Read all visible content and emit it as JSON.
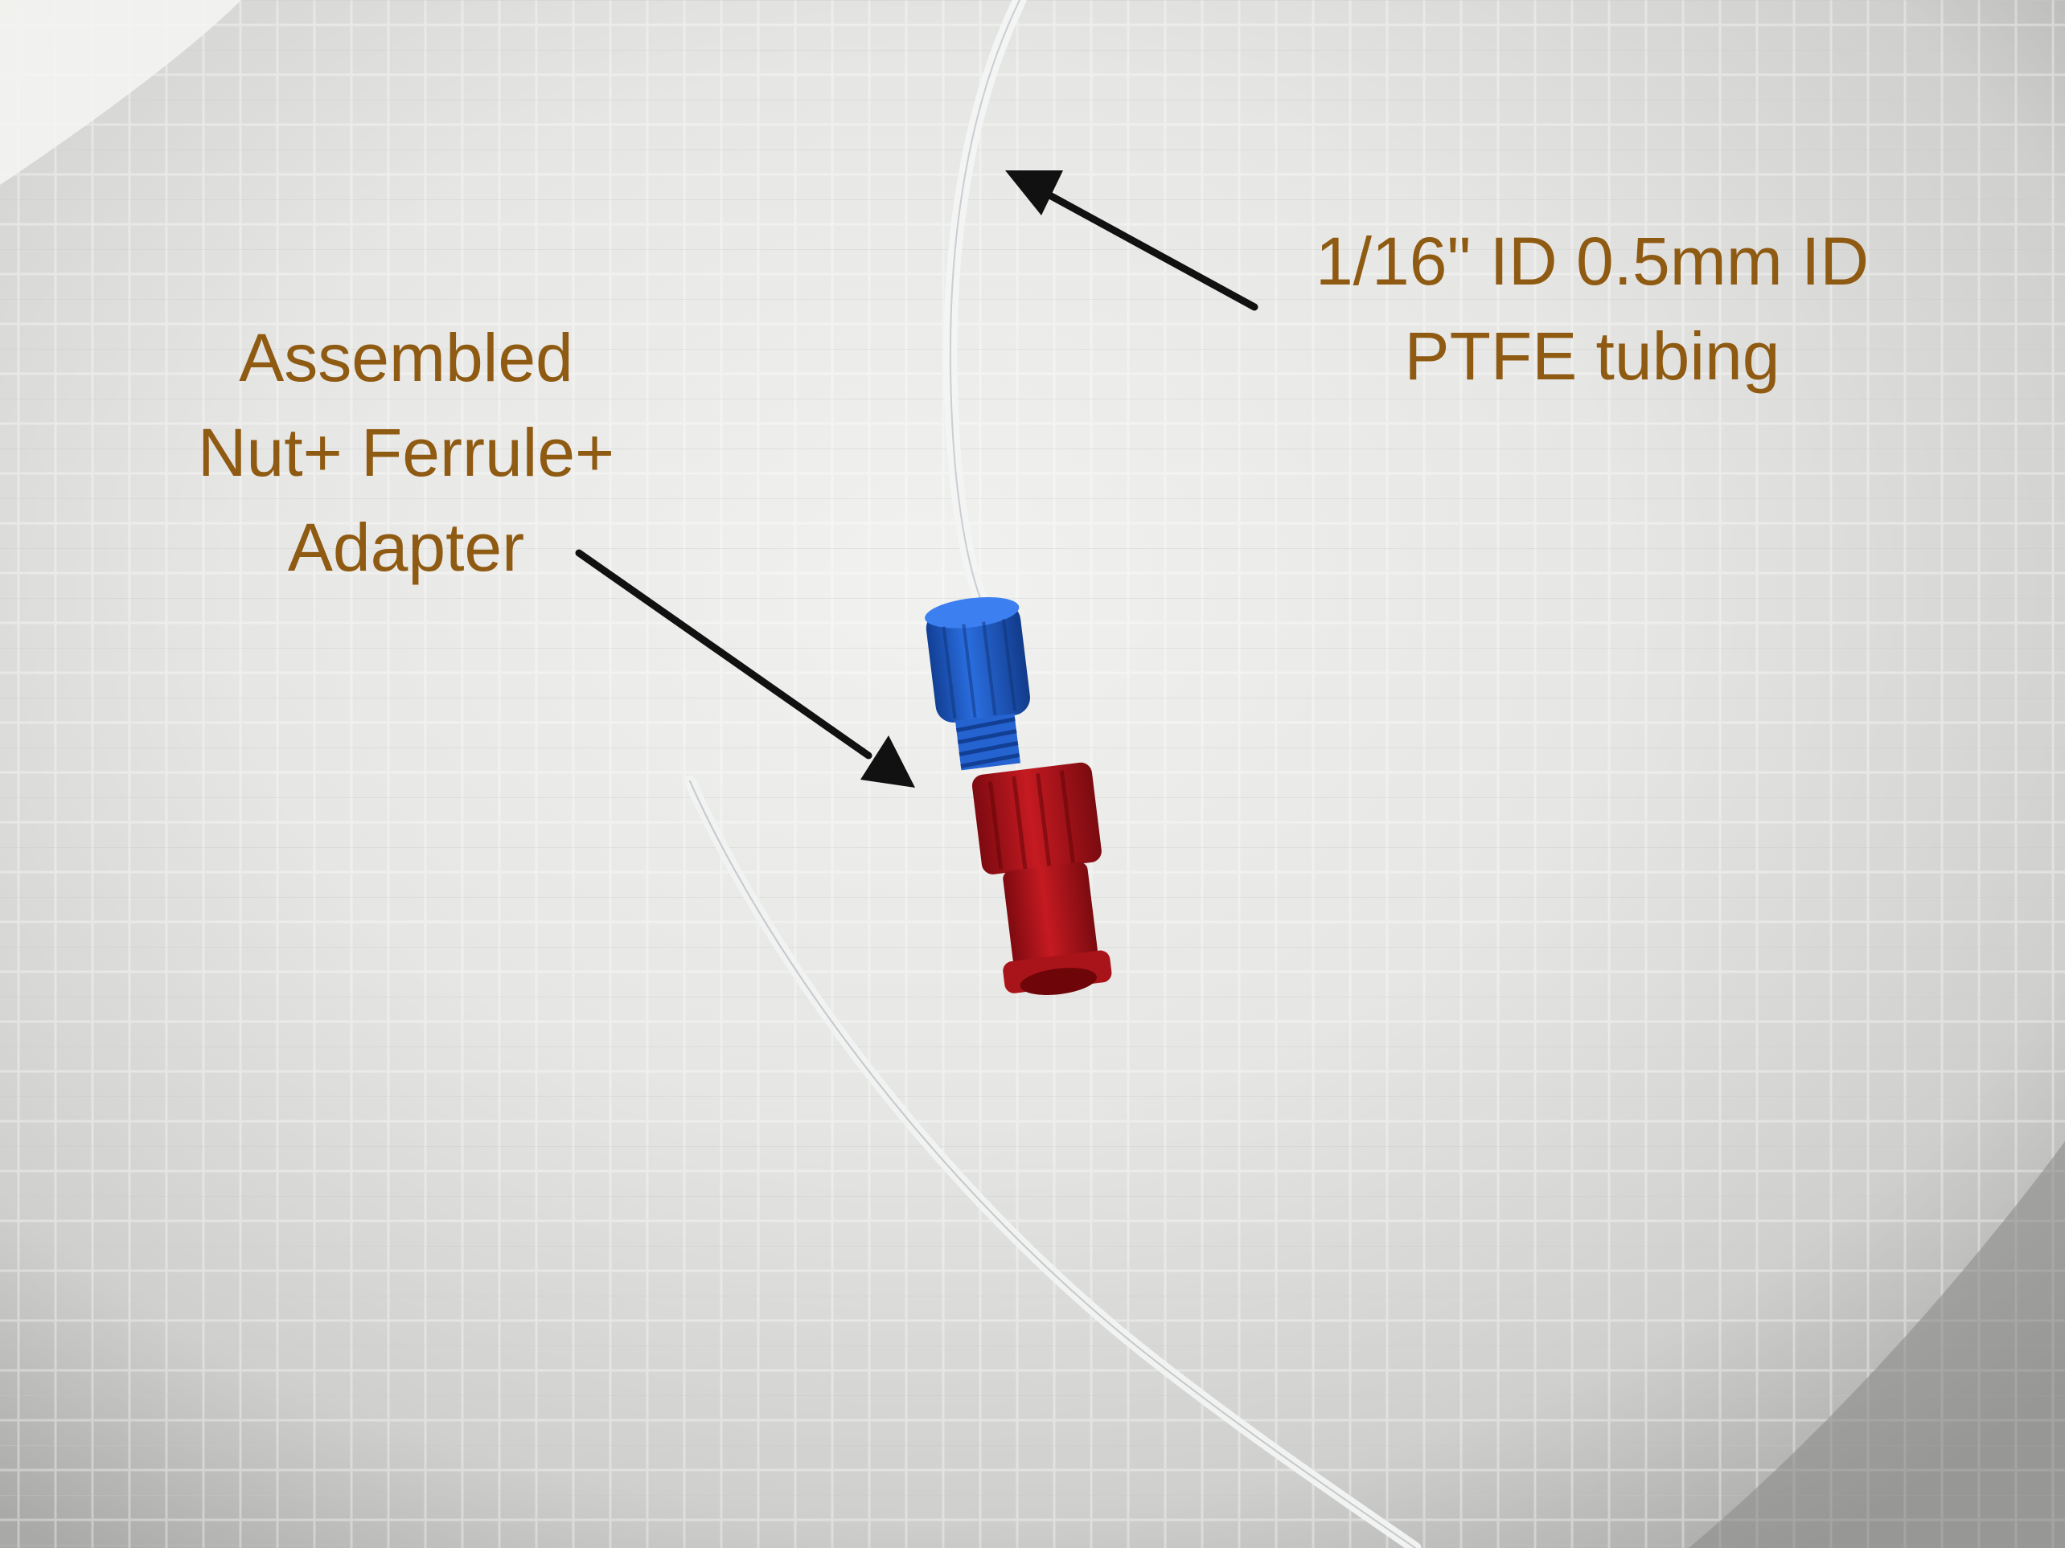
{
  "colors": {
    "annotation_text": "#8f5a12",
    "arrow": "#111111",
    "tube": "#eef0f0",
    "nut": "#1e5fc8",
    "adapter": "#b8161c",
    "background": "#d8d8d6"
  },
  "annotations": {
    "tubing": {
      "line1": "1/16\" ID 0.5mm ID",
      "line2": "PTFE tubing"
    },
    "assembly": {
      "line1": "Assembled",
      "line2": "Nut+ Ferrule+",
      "line3": "Adapter"
    }
  },
  "objects": {
    "tube": "ptfe-tubing",
    "nut": "blue-fitting-nut",
    "adapter": "red-luer-adapter",
    "surface": "textured-paper-towel"
  }
}
